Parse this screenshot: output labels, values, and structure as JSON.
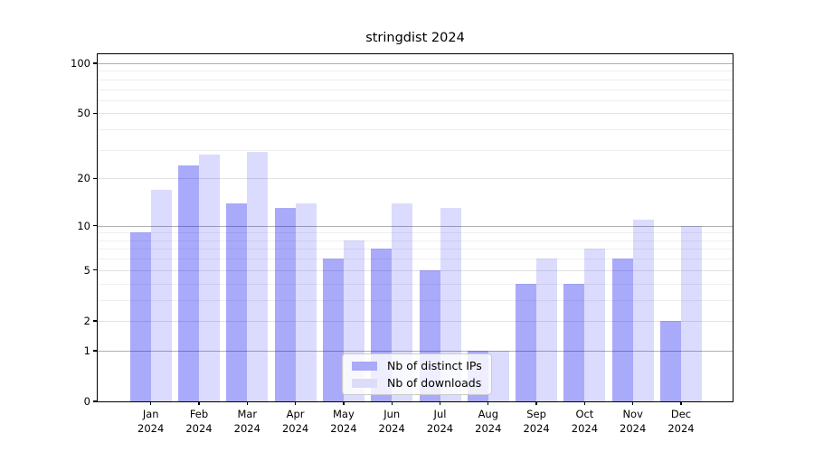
{
  "chart_data": {
    "type": "bar",
    "title": "stringdist 2024",
    "categories": [
      "Jan",
      "Feb",
      "Mar",
      "Apr",
      "May",
      "Jun",
      "Jul",
      "Aug",
      "Sep",
      "Oct",
      "Nov",
      "Dec"
    ],
    "category_year": "2024",
    "series": [
      {
        "name": "Nb of distinct IPs",
        "color": "#aaaaf8",
        "bar_fill": "rgba(0,0,240,0.335)",
        "values": [
          9,
          24,
          14,
          13,
          6,
          7,
          5,
          1,
          4,
          4,
          6,
          2
        ]
      },
      {
        "name": "Nb of downloads",
        "color": "#dcdcf8",
        "bar_fill": "rgba(0,0,240,0.14)",
        "values": [
          17,
          28,
          29,
          14,
          8,
          14,
          13,
          1,
          6,
          7,
          11,
          10
        ]
      }
    ],
    "y_scale": "log1p",
    "y_major_ticks": [
      0,
      1,
      2,
      5,
      10,
      20,
      50,
      100
    ],
    "y_decade_gridlines": [
      1,
      10,
      100
    ],
    "y_minor_ticks": [
      3,
      4,
      6,
      7,
      8,
      9,
      30,
      40,
      60,
      70,
      80,
      90
    ],
    "ylim": [
      0,
      113
    ],
    "xlabel": "",
    "ylabel": "",
    "grid": "on",
    "legend_position": "lower center inside plot",
    "colors": {
      "decade_grid": "#b0b0b0",
      "sub_major_grid": "#e3e3e3",
      "minor_grid": "#efefef",
      "spine": "#000000",
      "text": "#000000",
      "background": "#ffffff"
    }
  }
}
